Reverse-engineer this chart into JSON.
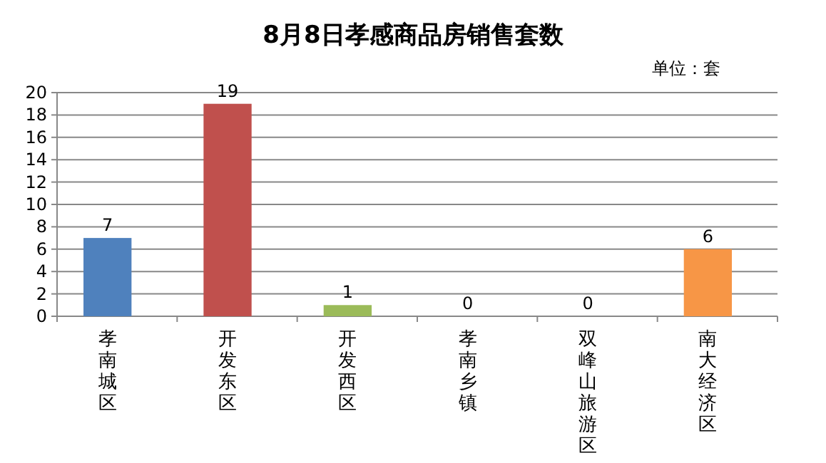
{
  "chart_data": {
    "type": "bar",
    "title": "8月8日孝感商品房销售套数",
    "subtitle": "单位：套",
    "categories": [
      "孝南城区",
      "开发东区",
      "开发西区",
      "孝南乡镇",
      "双峰山旅游区",
      "南大经济区"
    ],
    "values": [
      7,
      19,
      1,
      0,
      0,
      6
    ],
    "colors": [
      "#4f81bd",
      "#c0504d",
      "#9bbb59",
      "#8064a2",
      "#4bacc6",
      "#f79646"
    ],
    "ylim": [
      0,
      20
    ],
    "yticks": [
      0,
      2,
      4,
      6,
      8,
      10,
      12,
      14,
      16,
      18,
      20
    ],
    "grid": "y",
    "data_labels": true
  }
}
